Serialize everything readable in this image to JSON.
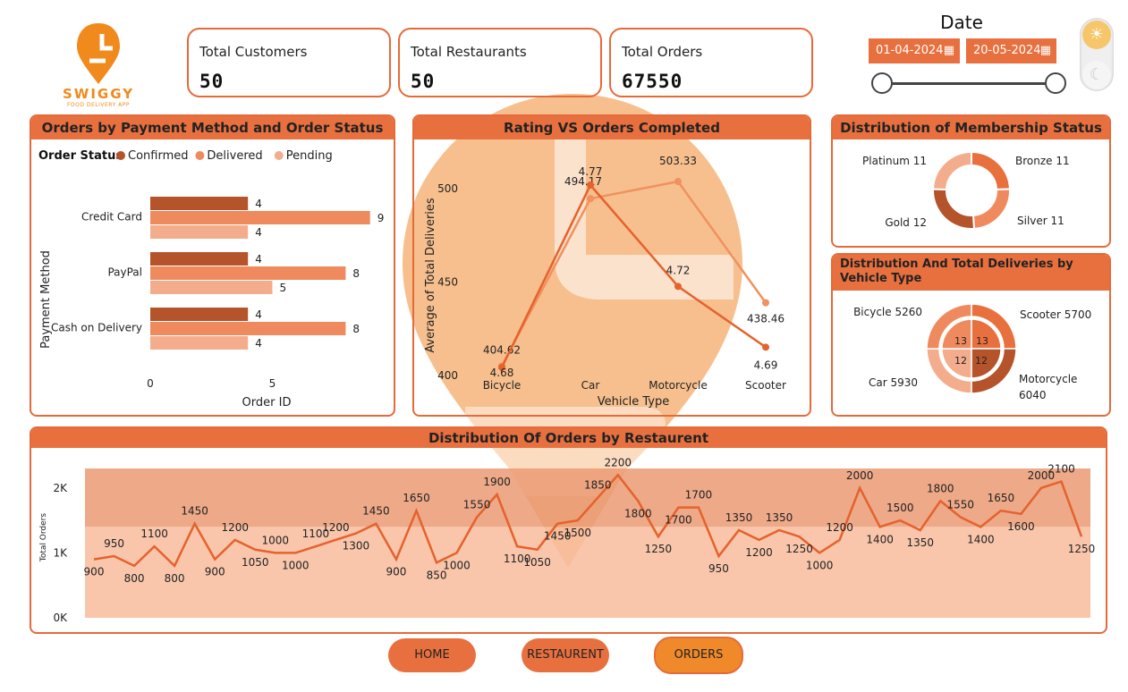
{
  "brand": {
    "name": "SWIGGY",
    "tagline": "FOOD DELIVERY APP"
  },
  "kpis": [
    {
      "label": "Total Customers",
      "value": "50"
    },
    {
      "label": "Total Restaurants",
      "value": "50"
    },
    {
      "label": "Total Orders",
      "value": "67550"
    }
  ],
  "date_filter": {
    "title": "Date",
    "start": "01-04-2024",
    "end": "20-05-2024",
    "range_fraction": [
      0,
      1
    ]
  },
  "theme_toggle": {
    "light_icon": "sun-icon",
    "dark_icon": "moon-icon"
  },
  "payment_panel": {
    "title": "Orders by Payment Method and Order Status",
    "legend_title": "Order Status",
    "chart_data": {
      "type": "bar",
      "orientation": "horizontal",
      "categories": [
        "Credit Card",
        "PayPal",
        "Cash on Delivery"
      ],
      "series": [
        {
          "name": "Confirmed",
          "values": [
            4,
            4,
            4
          ],
          "color": "#b5532a"
        },
        {
          "name": "Delivered",
          "values": [
            9,
            8,
            8
          ],
          "color": "#ef8a5f"
        },
        {
          "name": "Pending",
          "values": [
            4,
            5,
            4
          ],
          "color": "#f3ad8c"
        }
      ],
      "xlabel": "Order ID",
      "ylabel": "Payment Method",
      "xlim": [
        0,
        10
      ],
      "xticks": [
        "0",
        "5"
      ]
    }
  },
  "rating_panel": {
    "title": "Rating VS Orders Completed",
    "chart_data": {
      "type": "line",
      "categories": [
        "Bicycle",
        "Car",
        "Motorcycle",
        "Scooter"
      ],
      "series": [
        {
          "values": [
            404.62,
            494.17,
            503.33,
            438.46
          ],
          "labels": [
            "404.62",
            "494.17",
            "503.33",
            "438.46"
          ],
          "color": "#f0915f"
        },
        {
          "values": [
            4.68,
            4.77,
            4.72,
            4.69
          ],
          "labels": [
            "4.68",
            "4.77",
            "4.72",
            "4.69"
          ],
          "color": "#e5622d"
        }
      ],
      "xlabel": "Vehicle Type",
      "ylabel": "Average of Total Deliveries",
      "ylim": [
        400,
        510
      ],
      "yticks": [
        "400",
        "450",
        "500"
      ]
    }
  },
  "membership_panel": {
    "title": "Distribution of Membership Status",
    "chart_data": {
      "type": "pie",
      "donut": true,
      "labels": [
        "Bronze",
        "Silver",
        "Gold",
        "Platinum"
      ],
      "values": [
        11,
        11,
        12,
        11
      ],
      "display": [
        "Bronze 11",
        "Silver 11",
        "Gold 12",
        "Platinum 11"
      ],
      "colors": [
        "#e8703f",
        "#ef8a5f",
        "#b5532a",
        "#f3ad8c"
      ]
    }
  },
  "vehicle_panel": {
    "title": "Distribution And Total Deliveries by Vehicle Type",
    "chart_data": {
      "type": "pie",
      "donut": true,
      "outer": {
        "labels": [
          "Scooter",
          "Motorcycle",
          "Car",
          "Bicycle"
        ],
        "values": [
          5700,
          6040,
          5930,
          5260
        ],
        "display": [
          "Scooter 5700",
          "Motorcycle 6040",
          "Car 5930",
          "Bicycle 5260"
        ]
      },
      "inner": {
        "labels": [
          "Scooter",
          "Motorcycle",
          "Car",
          "Bicycle"
        ],
        "values": [
          13,
          12,
          12,
          13
        ],
        "display": [
          "13",
          "12",
          "12",
          "13"
        ]
      },
      "colors": [
        "#e8703f",
        "#b5532a",
        "#f3ad8c",
        "#ef8a5f"
      ]
    }
  },
  "orders_panel": {
    "title": "Distribution Of Orders by Restaurent",
    "chart_data": {
      "type": "line",
      "ylabel": "Total Orders",
      "ylim": [
        0,
        2300
      ],
      "yticks": [
        {
          "v": 0,
          "t": "0K"
        },
        {
          "v": 1000,
          "t": "1K"
        },
        {
          "v": 2000,
          "t": "2K"
        }
      ],
      "values": [
        900,
        950,
        800,
        1100,
        800,
        1450,
        900,
        1200,
        1050,
        1000,
        1000,
        1100,
        1200,
        1300,
        1450,
        900,
        1650,
        850,
        1000,
        1550,
        1900,
        1100,
        1050,
        1450,
        1500,
        1850,
        2200,
        1800,
        1250,
        1700,
        1700,
        950,
        1350,
        1200,
        1350,
        1250,
        1000,
        1200,
        2000,
        1400,
        1500,
        1350,
        1800,
        1550,
        1400,
        1650,
        1600,
        2000,
        2100,
        1250
      ],
      "label_pos": [
        "b",
        "t",
        "b",
        "t",
        "b",
        "t",
        "b",
        "t",
        "b",
        "t",
        "b",
        "t",
        "t",
        "b",
        "t",
        "b",
        "t",
        "b",
        "b",
        "t",
        "t",
        "b",
        "b",
        "b",
        "b",
        "t",
        "t",
        "b",
        "b",
        "b",
        "t",
        "b",
        "t",
        "b",
        "t",
        "b",
        "b",
        "t",
        "t",
        "b",
        "t",
        "b",
        "t",
        "t",
        "b",
        "t",
        "b",
        "t",
        "t",
        "b"
      ],
      "band_threshold": 1400
    }
  },
  "nav": {
    "home": "HOME",
    "restaurant": "RESTAURENT",
    "orders": "ORDERS"
  }
}
